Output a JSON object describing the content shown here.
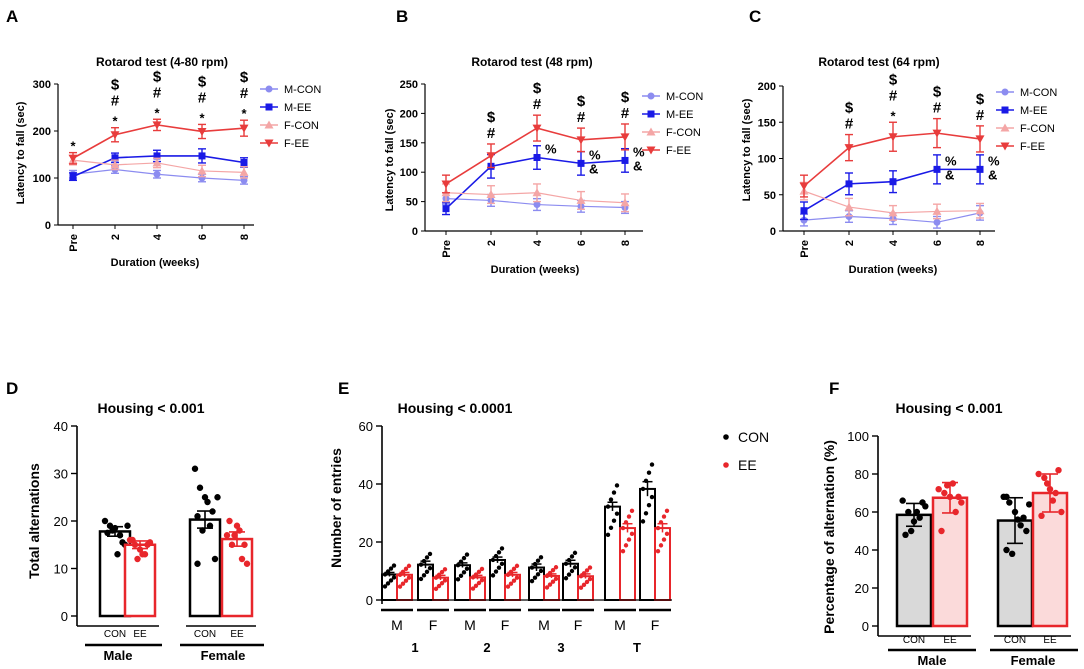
{
  "panels": {
    "A": {
      "letter": "A",
      "title": "Rotarod test (4-80 rpm)",
      "ylabel": "Latency to fall (sec)",
      "xlabel": "Duration (weeks)",
      "xticks": [
        "Pre",
        "2",
        "4",
        "6",
        "8"
      ],
      "yticks": [
        "0",
        "100",
        "200",
        "300"
      ],
      "legend": [
        "M-CON",
        "M-EE",
        "F-CON",
        "F-EE"
      ],
      "annotations": [
        {
          "lines": [
            "*"
          ]
        },
        {
          "lines": [
            "$",
            "#",
            "*"
          ]
        },
        {
          "lines": [
            "$",
            "#",
            "*"
          ]
        },
        {
          "lines": [
            "$",
            "#",
            "*"
          ]
        },
        {
          "lines": [
            "$",
            "#",
            "*"
          ]
        }
      ]
    },
    "B": {
      "letter": "B",
      "title": "Rotarod test (48 rpm)",
      "ylabel": "Latency to fall (sec)",
      "xlabel": "Duration (weeks)",
      "xticks": [
        "Pre",
        "2",
        "4",
        "6",
        "8"
      ],
      "yticks": [
        "0",
        "50",
        "100",
        "150",
        "200",
        "250"
      ],
      "legend": [
        "M-CON",
        "M-EE",
        "F-CON",
        "F-EE"
      ],
      "annotations": [
        {
          "lines": []
        },
        {
          "lines": [
            "$",
            "#"
          ]
        },
        {
          "lines": [
            "$",
            "#",
            "%"
          ]
        },
        {
          "lines": [
            "$",
            "#",
            "%",
            "&"
          ]
        },
        {
          "lines": [
            "$",
            "#",
            "%",
            "&"
          ]
        }
      ]
    },
    "C": {
      "letter": "C",
      "title": "Rotarod test (64 rpm)",
      "ylabel": "Latency to fall (sec)",
      "xlabel": "Duration (weeks)",
      "xticks": [
        "Pre",
        "2",
        "4",
        "6",
        "8"
      ],
      "yticks": [
        "0",
        "50",
        "100",
        "150",
        "200"
      ],
      "legend": [
        "M-CON",
        "M-EE",
        "F-CON",
        "F-EE"
      ],
      "annotations": [
        {
          "lines": []
        },
        {
          "lines": [
            "$",
            "#"
          ]
        },
        {
          "lines": [
            "$",
            "#",
            "*"
          ]
        },
        {
          "lines": [
            "$",
            "#",
            "%",
            "&"
          ]
        },
        {
          "lines": [
            "$",
            "#",
            "%",
            "&"
          ]
        }
      ]
    },
    "D": {
      "letter": "D",
      "title": "Housing < 0.001",
      "ylabel": "Total alternations",
      "yticks": [
        "0",
        "10",
        "20",
        "30",
        "40"
      ],
      "bar_labels": [
        "CON",
        "EE",
        "CON",
        "EE"
      ],
      "groups": [
        "Male",
        "Female"
      ]
    },
    "E": {
      "letter": "E",
      "title": "Housing < 0.0001",
      "ylabel": "Number of entries",
      "yticks": [
        "0",
        "20",
        "40",
        "60"
      ],
      "sub_labels": [
        "M",
        "F",
        "M",
        "F",
        "M",
        "F",
        "M",
        "F"
      ],
      "groups": [
        "1",
        "2",
        "3",
        "T"
      ],
      "legend": [
        "CON",
        "EE"
      ]
    },
    "F": {
      "letter": "F",
      "title": "Housing < 0.001",
      "ylabel": "Percentage of alternation (%)",
      "yticks": [
        "0",
        "20",
        "40",
        "60",
        "80",
        "100"
      ],
      "bar_labels": [
        "CON",
        "EE",
        "CON",
        "EE"
      ],
      "groups": [
        "Male",
        "Female"
      ]
    }
  },
  "colors": {
    "m_con": "#8c8cf0",
    "m_ee": "#1a1ae6",
    "f_con": "#f4a6a6",
    "f_ee": "#e83c3c",
    "con_bar": "#000000",
    "ee_bar": "#e8262b",
    "con_fill_F": "#d9d9d9",
    "ee_fill_F": "#fbdada"
  },
  "chart_data": [
    {
      "type": "line",
      "panel": "A",
      "title": "Rotarod test (4-80 rpm)",
      "xlabel": "Duration (weeks)",
      "ylabel": "Latency to fall (sec)",
      "categories": [
        "Pre",
        "2",
        "4",
        "6",
        "8"
      ],
      "ylim": [
        0,
        300
      ],
      "series": [
        {
          "name": "M-CON",
          "values": [
            108,
            118,
            108,
            100,
            95
          ],
          "err": [
            8,
            8,
            8,
            8,
            8
          ]
        },
        {
          "name": "M-EE",
          "values": [
            103,
            143,
            147,
            147,
            133
          ],
          "err": [
            8,
            10,
            12,
            15,
            10
          ]
        },
        {
          "name": "F-CON",
          "values": [
            138,
            128,
            132,
            115,
            112
          ],
          "err": [
            10,
            10,
            10,
            12,
            12
          ]
        },
        {
          "name": "F-EE",
          "values": [
            142,
            192,
            213,
            199,
            206
          ],
          "err": [
            12,
            15,
            12,
            15,
            17
          ]
        }
      ]
    },
    {
      "type": "line",
      "panel": "B",
      "title": "Rotarod test (48 rpm)",
      "xlabel": "Duration (weeks)",
      "ylabel": "Latency to fall (sec)",
      "categories": [
        "Pre",
        "2",
        "4",
        "6",
        "8"
      ],
      "ylim": [
        0,
        250
      ],
      "series": [
        {
          "name": "M-CON",
          "values": [
            55,
            52,
            45,
            42,
            40
          ],
          "err": [
            10,
            10,
            10,
            10,
            10
          ]
        },
        {
          "name": "M-EE",
          "values": [
            38,
            110,
            125,
            115,
            120
          ],
          "err": [
            10,
            20,
            20,
            20,
            20
          ]
        },
        {
          "name": "F-CON",
          "values": [
            65,
            62,
            65,
            52,
            48
          ],
          "err": [
            15,
            15,
            15,
            15,
            15
          ]
        },
        {
          "name": "F-EE",
          "values": [
            80,
            128,
            175,
            155,
            160
          ],
          "err": [
            15,
            20,
            22,
            20,
            22
          ]
        }
      ]
    },
    {
      "type": "line",
      "panel": "C",
      "title": "Rotarod test (64 rpm)",
      "xlabel": "Duration (weeks)",
      "ylabel": "Latency to fall (sec)",
      "categories": [
        "Pre",
        "2",
        "4",
        "6",
        "8"
      ],
      "ylim": [
        0,
        200
      ],
      "series": [
        {
          "name": "M-CON",
          "values": [
            15,
            20,
            17,
            12,
            25
          ],
          "err": [
            8,
            8,
            8,
            8,
            10
          ]
        },
        {
          "name": "M-EE",
          "values": [
            28,
            65,
            68,
            85,
            85
          ],
          "err": [
            12,
            15,
            15,
            20,
            20
          ]
        },
        {
          "name": "F-CON",
          "values": [
            55,
            33,
            25,
            27,
            28
          ],
          "err": [
            12,
            12,
            10,
            10,
            10
          ]
        },
        {
          "name": "F-EE",
          "values": [
            62,
            115,
            130,
            135,
            127
          ],
          "err": [
            15,
            18,
            20,
            20,
            18
          ]
        }
      ]
    },
    {
      "type": "bar",
      "panel": "D",
      "title": "Housing < 0.001",
      "ylabel": "Total alternations",
      "ylim": [
        0,
        40
      ],
      "categories": [
        "Male CON",
        "Male EE",
        "Female CON",
        "Female EE"
      ],
      "values": [
        17.8,
        15.0,
        20.3,
        16.2
      ],
      "err": [
        1.0,
        0.8,
        1.8,
        1.5
      ],
      "points": [
        [
          20,
          19,
          18.5,
          17,
          15,
          17.5,
          18,
          13,
          15.5,
          19
        ],
        [
          16,
          15,
          14,
          13,
          15.5,
          16,
          12,
          13,
          15
        ],
        [
          31,
          27,
          25,
          19,
          12,
          11,
          18,
          24,
          22,
          25,
          21
        ],
        [
          17,
          15,
          19,
          12,
          11,
          20,
          17,
          18,
          15
        ]
      ]
    },
    {
      "type": "bar",
      "panel": "E",
      "title": "Housing < 0.0001",
      "ylabel": "Number of entries",
      "ylim": [
        0,
        60
      ],
      "categories": [
        "1 M",
        "1 F",
        "2 M",
        "2 F",
        "3 M",
        "3 F",
        "T M",
        "T F"
      ],
      "series": [
        {
          "name": "CON",
          "values": [
            8.8,
            12.2,
            12.0,
            13.8,
            11.2,
            12.5,
            32.2,
            38.3
          ],
          "err": [
            0.7,
            1.2,
            0.8,
            1.0,
            1.2,
            1.2,
            1.5,
            2.5
          ]
        },
        {
          "name": "EE",
          "values": [
            8.7,
            7.7,
            7.8,
            8.7,
            8.3,
            8.2,
            24.8,
            24.8
          ],
          "err": [
            0.8,
            0.8,
            0.7,
            0.8,
            0.7,
            0.8,
            1.5,
            1.5
          ]
        }
      ]
    },
    {
      "type": "bar",
      "panel": "F",
      "title": "Housing < 0.001",
      "ylabel": "Percentage of alternation (%)",
      "ylim": [
        0,
        100
      ],
      "categories": [
        "Male CON",
        "Male EE",
        "Female CON",
        "Female EE"
      ],
      "values": [
        58.5,
        67.5,
        55.5,
        70.0
      ],
      "err": [
        6.0,
        8.0,
        12.0,
        10.0
      ],
      "points": [
        [
          66,
          60,
          55,
          57,
          63,
          48,
          50,
          60,
          65
        ],
        [
          72,
          70,
          68,
          60,
          65,
          50,
          74,
          75,
          68
        ],
        [
          68,
          65,
          60,
          53,
          50,
          40,
          38,
          56,
          57,
          64,
          68
        ],
        [
          80,
          78,
          72,
          70,
          60,
          58,
          75,
          66,
          82
        ]
      ]
    }
  ]
}
